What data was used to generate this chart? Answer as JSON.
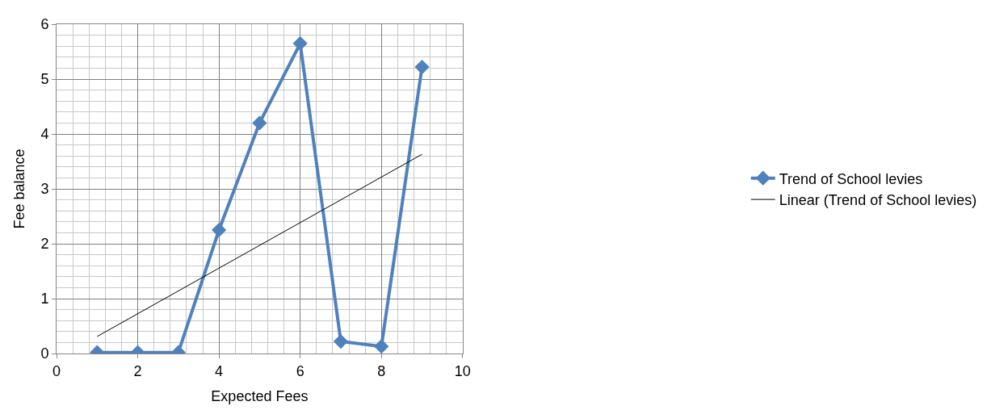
{
  "chart_data": {
    "type": "line",
    "xlabel": "Expected Fees",
    "ylabel": "Fee balance",
    "x": [
      1,
      2,
      3,
      4,
      5,
      6,
      7,
      8,
      9
    ],
    "series": [
      {
        "name": "Trend of School levies",
        "color": "#4f81bd",
        "values": [
          0.02,
          0.02,
          0.02,
          2.25,
          4.2,
          5.65,
          0.22,
          0.13,
          5.22
        ],
        "marker": "diamond"
      },
      {
        "name": "Linear (Trend of School levies)",
        "color": "#000000",
        "x": [
          1,
          9
        ],
        "values": [
          0.31,
          3.63
        ],
        "marker": "none"
      }
    ],
    "xlim": [
      0,
      10
    ],
    "xticks": [
      0,
      2,
      4,
      6,
      8,
      10
    ],
    "ylim": [
      0,
      6
    ],
    "yticks": [
      0,
      1,
      2,
      3,
      4,
      5,
      6
    ],
    "grid": true,
    "legend": "right",
    "line_style": "solid"
  }
}
